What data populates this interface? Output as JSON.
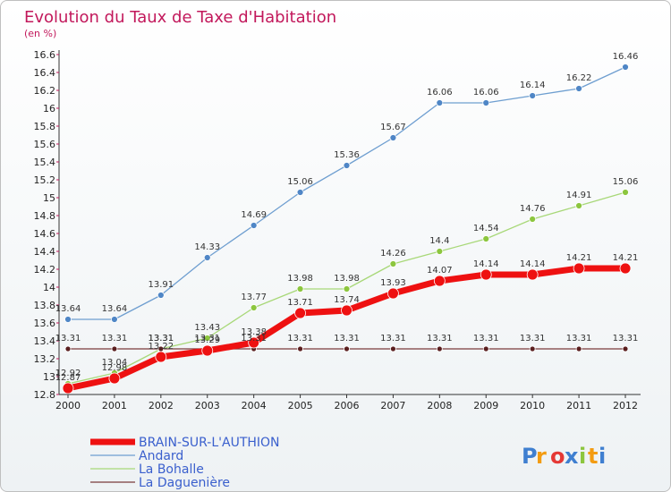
{
  "chart_data": {
    "type": "line",
    "title": "Evolution du Taux de Taxe d'Habitation",
    "subtitle": "(en %)",
    "x": [
      "2000",
      "2001",
      "2002",
      "2003",
      "2004",
      "2005",
      "2006",
      "2007",
      "2008",
      "2009",
      "2010",
      "2011",
      "2012"
    ],
    "ylim": [
      12.8,
      16.6
    ],
    "yticks": [
      12.8,
      13,
      13.2,
      13.4,
      13.6,
      13.8,
      14,
      14.2,
      14.4,
      14.6,
      14.8,
      15,
      15.2,
      15.4,
      15.6,
      15.8,
      16,
      16.2,
      16.4,
      16.6
    ],
    "ytick_labels": [
      "12.8",
      "13",
      "13.2",
      "13.4",
      "13.6",
      "13.8",
      "14",
      "14.2",
      "14.4",
      "14.6",
      "14.8",
      "15",
      "15.2",
      "15.4",
      "15.6",
      "15.8",
      "16",
      "16.2",
      "16.4",
      "16.6"
    ],
    "grid": false,
    "legend": "bottom-left",
    "series": [
      {
        "name": "Andard",
        "color": "#6e9ed0",
        "marker": "#4f86c6",
        "width": 1.3,
        "markerR": 3.5,
        "values": [
          13.64,
          13.64,
          13.91,
          14.33,
          14.69,
          15.06,
          15.36,
          15.67,
          16.06,
          16.06,
          16.14,
          16.22,
          16.46
        ],
        "labels": [
          "13.64",
          "13.64",
          "13.91",
          "14.33",
          "14.69",
          "15.06",
          "15.36",
          "15.67",
          "16.06",
          "16.06",
          "16.14",
          "16.22",
          "16.46"
        ]
      },
      {
        "name": "La Bohalle",
        "color": "#a8d878",
        "marker": "#8cc63e",
        "width": 1.3,
        "markerR": 3.5,
        "values": [
          12.92,
          13.04,
          13.31,
          13.43,
          13.77,
          13.98,
          13.98,
          14.26,
          14.4,
          14.54,
          14.76,
          14.91,
          15.06
        ],
        "labels": [
          "12.92",
          "13.04",
          "13.31",
          "13.43",
          "13.77",
          "13.98",
          "13.98",
          "14.26",
          "14.4",
          "14.54",
          "14.76",
          "14.91",
          "15.06"
        ]
      },
      {
        "name": "La Daguenière",
        "color": "#7a3b3b",
        "marker": "#5a1f1f",
        "width": 1.3,
        "markerR": 3,
        "values": [
          13.31,
          13.31,
          13.31,
          13.31,
          13.31,
          13.31,
          13.31,
          13.31,
          13.31,
          13.31,
          13.31,
          13.31,
          13.31
        ],
        "labels": [
          "13.31",
          "13.31",
          "13.31",
          "13.31",
          "13.31",
          "13.31",
          "13.31",
          "13.31",
          "13.31",
          "13.31",
          "13.31",
          "13.31",
          "13.31"
        ]
      },
      {
        "name": "BRAIN-SUR-L'AUTHION",
        "color": "#ee1111",
        "marker": "#ee1111",
        "width": 7,
        "markerR": 6,
        "values": [
          12.87,
          12.98,
          13.22,
          13.29,
          13.38,
          13.71,
          13.74,
          13.93,
          14.07,
          14.14,
          14.14,
          14.21,
          14.21
        ],
        "labels": [
          "12.87",
          "12.98",
          "13.22",
          "13.29",
          "13.38",
          "13.71",
          "13.74",
          "13.93",
          "14.07",
          "14.14",
          "14.14",
          "14.21",
          "14.21"
        ]
      }
    ],
    "legend_order": [
      "BRAIN-SUR-L'AUTHION",
      "Andard",
      "La Bohalle",
      "La Daguenière"
    ]
  },
  "logo": {
    "text": "Proxiti"
  }
}
